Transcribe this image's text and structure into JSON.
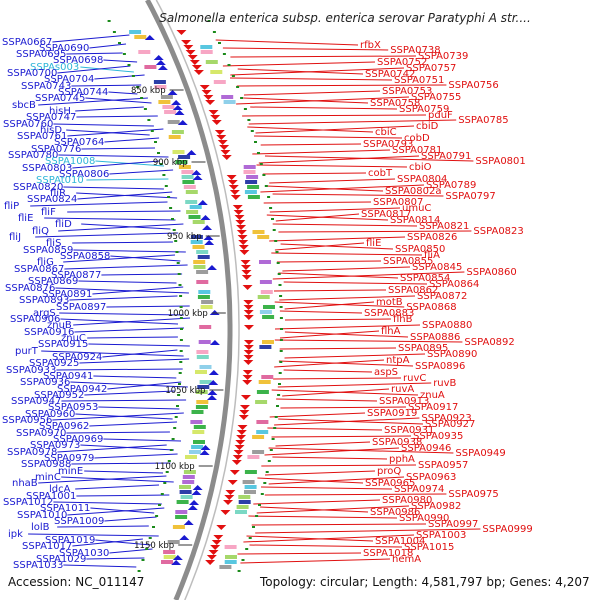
{
  "title": "Salmonella enterica subsp. enterica serovar Paratyphi A str....",
  "accession": "Accession: NC_011147",
  "summary": "Topology: circular; Length: 4,581,797 bp; Genes: 4,207",
  "colors": {
    "left_label": "#1a1ad0",
    "rna_label": "#2fb6d8",
    "right_label": "#e01010",
    "backbone": "#8c8c8c",
    "tick": "#1a8a1a"
  },
  "tick_labels": [
    "850 kbp",
    "900 kbp",
    "950 kbp",
    "1000 kbp",
    "1050 kbp",
    "1100 kbp",
    "1150 kbp"
  ],
  "left_labels": [
    "SSPA0667",
    "SSPA0690",
    "SSPA0695",
    "SSPA0698",
    "SSPAs003",
    "SSPA0700",
    "SSPA0704",
    "SSPA0743",
    "SSPA0744",
    "SSPA0745",
    "sbcB",
    "hisH",
    "SSPA0747",
    "SSPA0760",
    "hisD",
    "SSPA0761",
    "SSPA0764",
    "SSPA0776",
    "SSPA0780",
    "SSPA1008",
    "SSPA0803",
    "SSPA0806",
    "SSPAt010",
    "SSPA0820",
    "fliR",
    "SSPA0824",
    "fliP",
    "fliF",
    "fliE",
    "fliD",
    "fliQ",
    "fliJ",
    "fliS",
    "SSPA0859",
    "SSPA0858",
    "fliG",
    "SSPA0867",
    "SSPA0877",
    "SSPA0869",
    "SSPA0876",
    "SSPA0891",
    "SSPA0893",
    "SSPA0897",
    "argS",
    "SSPA0906",
    "znuB",
    "SSPA0916",
    "znuC",
    "SSPA0915",
    "purT",
    "SSPA0924",
    "SSPA0925",
    "SSPA0933",
    "SSPA0941",
    "SSPA0936",
    "SSPA0942",
    "SSPA0952",
    "SSPA0947",
    "SSPA0953",
    "SSPA0960",
    "SSPA0956",
    "SSPA0962",
    "SSPA0970",
    "SSPA0969",
    "SSPA0973",
    "SSPA0978",
    "SSPA0979",
    "SSPA0988",
    "minE",
    "minC",
    "nhaB",
    "ldcA",
    "SSPA1001",
    "SSPA1012",
    "SSPA1011",
    "SSPA1010",
    "SSPA1009",
    "lolB",
    "ipk",
    "SSPA1019",
    "SSPA1017",
    "SSPA1030",
    "SSPA1029",
    "SSPA1033"
  ],
  "right_labels": [
    "rfbX",
    "SSPA0738",
    "SSPA0739",
    "SSPA0752",
    "SSPA0757",
    "SSPA0742",
    "SSPA0751",
    "SSPA0756",
    "SSPA0753",
    "SSPA0755",
    "SSPA0758",
    "SSPA0759",
    "pduF",
    "SSPA0785",
    "cbiD",
    "cbiC",
    "cobD",
    "SSPA0793",
    "SSPA0781",
    "SSPA0791",
    "SSPA0801",
    "cbiO",
    "cobT",
    "SSPA0804",
    "SSPA0789",
    "SSPA0802a",
    "SSPA0797",
    "SSPA0807",
    "umuC",
    "SSPA0817",
    "SSPA0814",
    "SSPA0821",
    "SSPA0823",
    "SSPA0826",
    "fliE",
    "SSPA0850",
    "fliA",
    "SSPA0855",
    "SSPA0845",
    "SSPA0860",
    "SSPA0854",
    "SSPA0864",
    "SSPA0862",
    "SSPA0872",
    "motB",
    "SSPA0868",
    "SSPA0883",
    "flhB",
    "SSPA0880",
    "flhA",
    "SSPA0886",
    "SSPA0892",
    "SSPA0895",
    "SSPA0890",
    "ntpA",
    "SSPA0896",
    "aspS",
    "ruvC",
    "ruvB",
    "ruvA",
    "znuA",
    "SSPA0913",
    "SSPA0917",
    "SSPA0919",
    "SSPA0923",
    "SSPA0927",
    "SSPA0931",
    "SSPA0935",
    "SSPA0938",
    "SSPA0946",
    "SSPA0949",
    "pphA",
    "SSPA0957",
    "proQ",
    "SSPA0963",
    "SSPA0965",
    "SSPA0974",
    "SSPA0975",
    "SSPA0980",
    "SSPA0982",
    "SSPA0986",
    "SSPA0990",
    "SSPA0997",
    "SSPA0999",
    "SSPA1003",
    "SSPA1004",
    "SSPA1015",
    "SSPA1018",
    "hemA"
  ]
}
